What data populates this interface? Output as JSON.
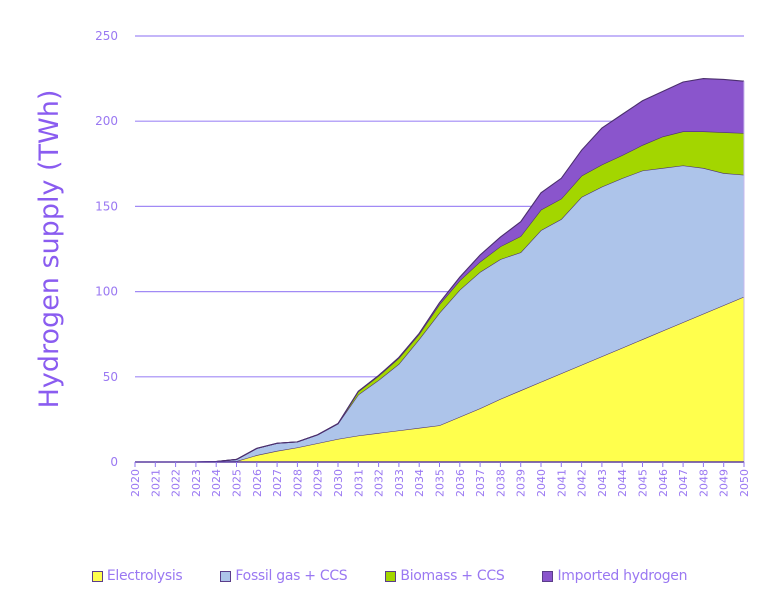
{
  "chart_data": {
    "type": "area",
    "stacked": true,
    "title": "",
    "xlabel": "",
    "ylabel": "Hydrogen supply (TWh)",
    "ylim": [
      0,
      250
    ],
    "yticks": [
      0,
      50,
      100,
      150,
      200,
      250
    ],
    "grid": true,
    "legend_position": "bottom",
    "x": [
      2020,
      2021,
      2022,
      2023,
      2024,
      2025,
      2026,
      2027,
      2028,
      2029,
      2030,
      2031,
      2032,
      2033,
      2034,
      2035,
      2036,
      2037,
      2038,
      2039,
      2040,
      2041,
      2042,
      2043,
      2044,
      2045,
      2046,
      2047,
      2048,
      2049,
      2050
    ],
    "series": [
      {
        "name": "Electrolysis",
        "color": "#ffff4d",
        "values": [
          0,
          0,
          0,
          0,
          0.2,
          0.5,
          4,
          6.5,
          8.5,
          11,
          13.5,
          15.5,
          17,
          18.5,
          20,
          21.5,
          26.5,
          31.5,
          37,
          42,
          47,
          52,
          57,
          62,
          67,
          72,
          77,
          82,
          87,
          92,
          97
        ]
      },
      {
        "name": "Fossil gas + CCS",
        "color": "#adc4ea",
        "values": [
          0,
          0,
          0,
          0,
          0.1,
          1,
          4,
          4.5,
          3.3,
          5,
          9,
          24,
          31,
          39,
          52,
          66,
          74.5,
          80,
          82,
          81,
          89,
          90.5,
          98.5,
          99.5,
          99.5,
          99,
          95.5,
          92,
          85.5,
          77.5,
          71.5
        ]
      },
      {
        "name": "Biomass + CCS",
        "color": "#a3d600",
        "values": [
          0,
          0,
          0,
          0,
          0,
          0,
          0,
          0,
          0,
          0,
          0,
          1.8,
          2.5,
          3.5,
          3,
          5,
          5.5,
          6,
          7.5,
          9.5,
          12,
          12,
          12.5,
          13,
          13.5,
          15,
          18.5,
          20,
          21.5,
          24,
          24.5
        ]
      },
      {
        "name": "Imported hydrogen",
        "color": "#8a55cc",
        "values": [
          0,
          0,
          0,
          0,
          0,
          0,
          0,
          0,
          0,
          0,
          0,
          0.2,
          0.3,
          0.4,
          0.5,
          1,
          2,
          4,
          5.5,
          8.5,
          10,
          12,
          15,
          21.5,
          24,
          26,
          26.5,
          29,
          31,
          31,
          30.5
        ]
      }
    ]
  },
  "colors": {
    "axis_text": "#9a78f2",
    "axis_title": "#8a5cf0",
    "gridline": "#a18af5",
    "series_outline": "#4b2f6e"
  }
}
